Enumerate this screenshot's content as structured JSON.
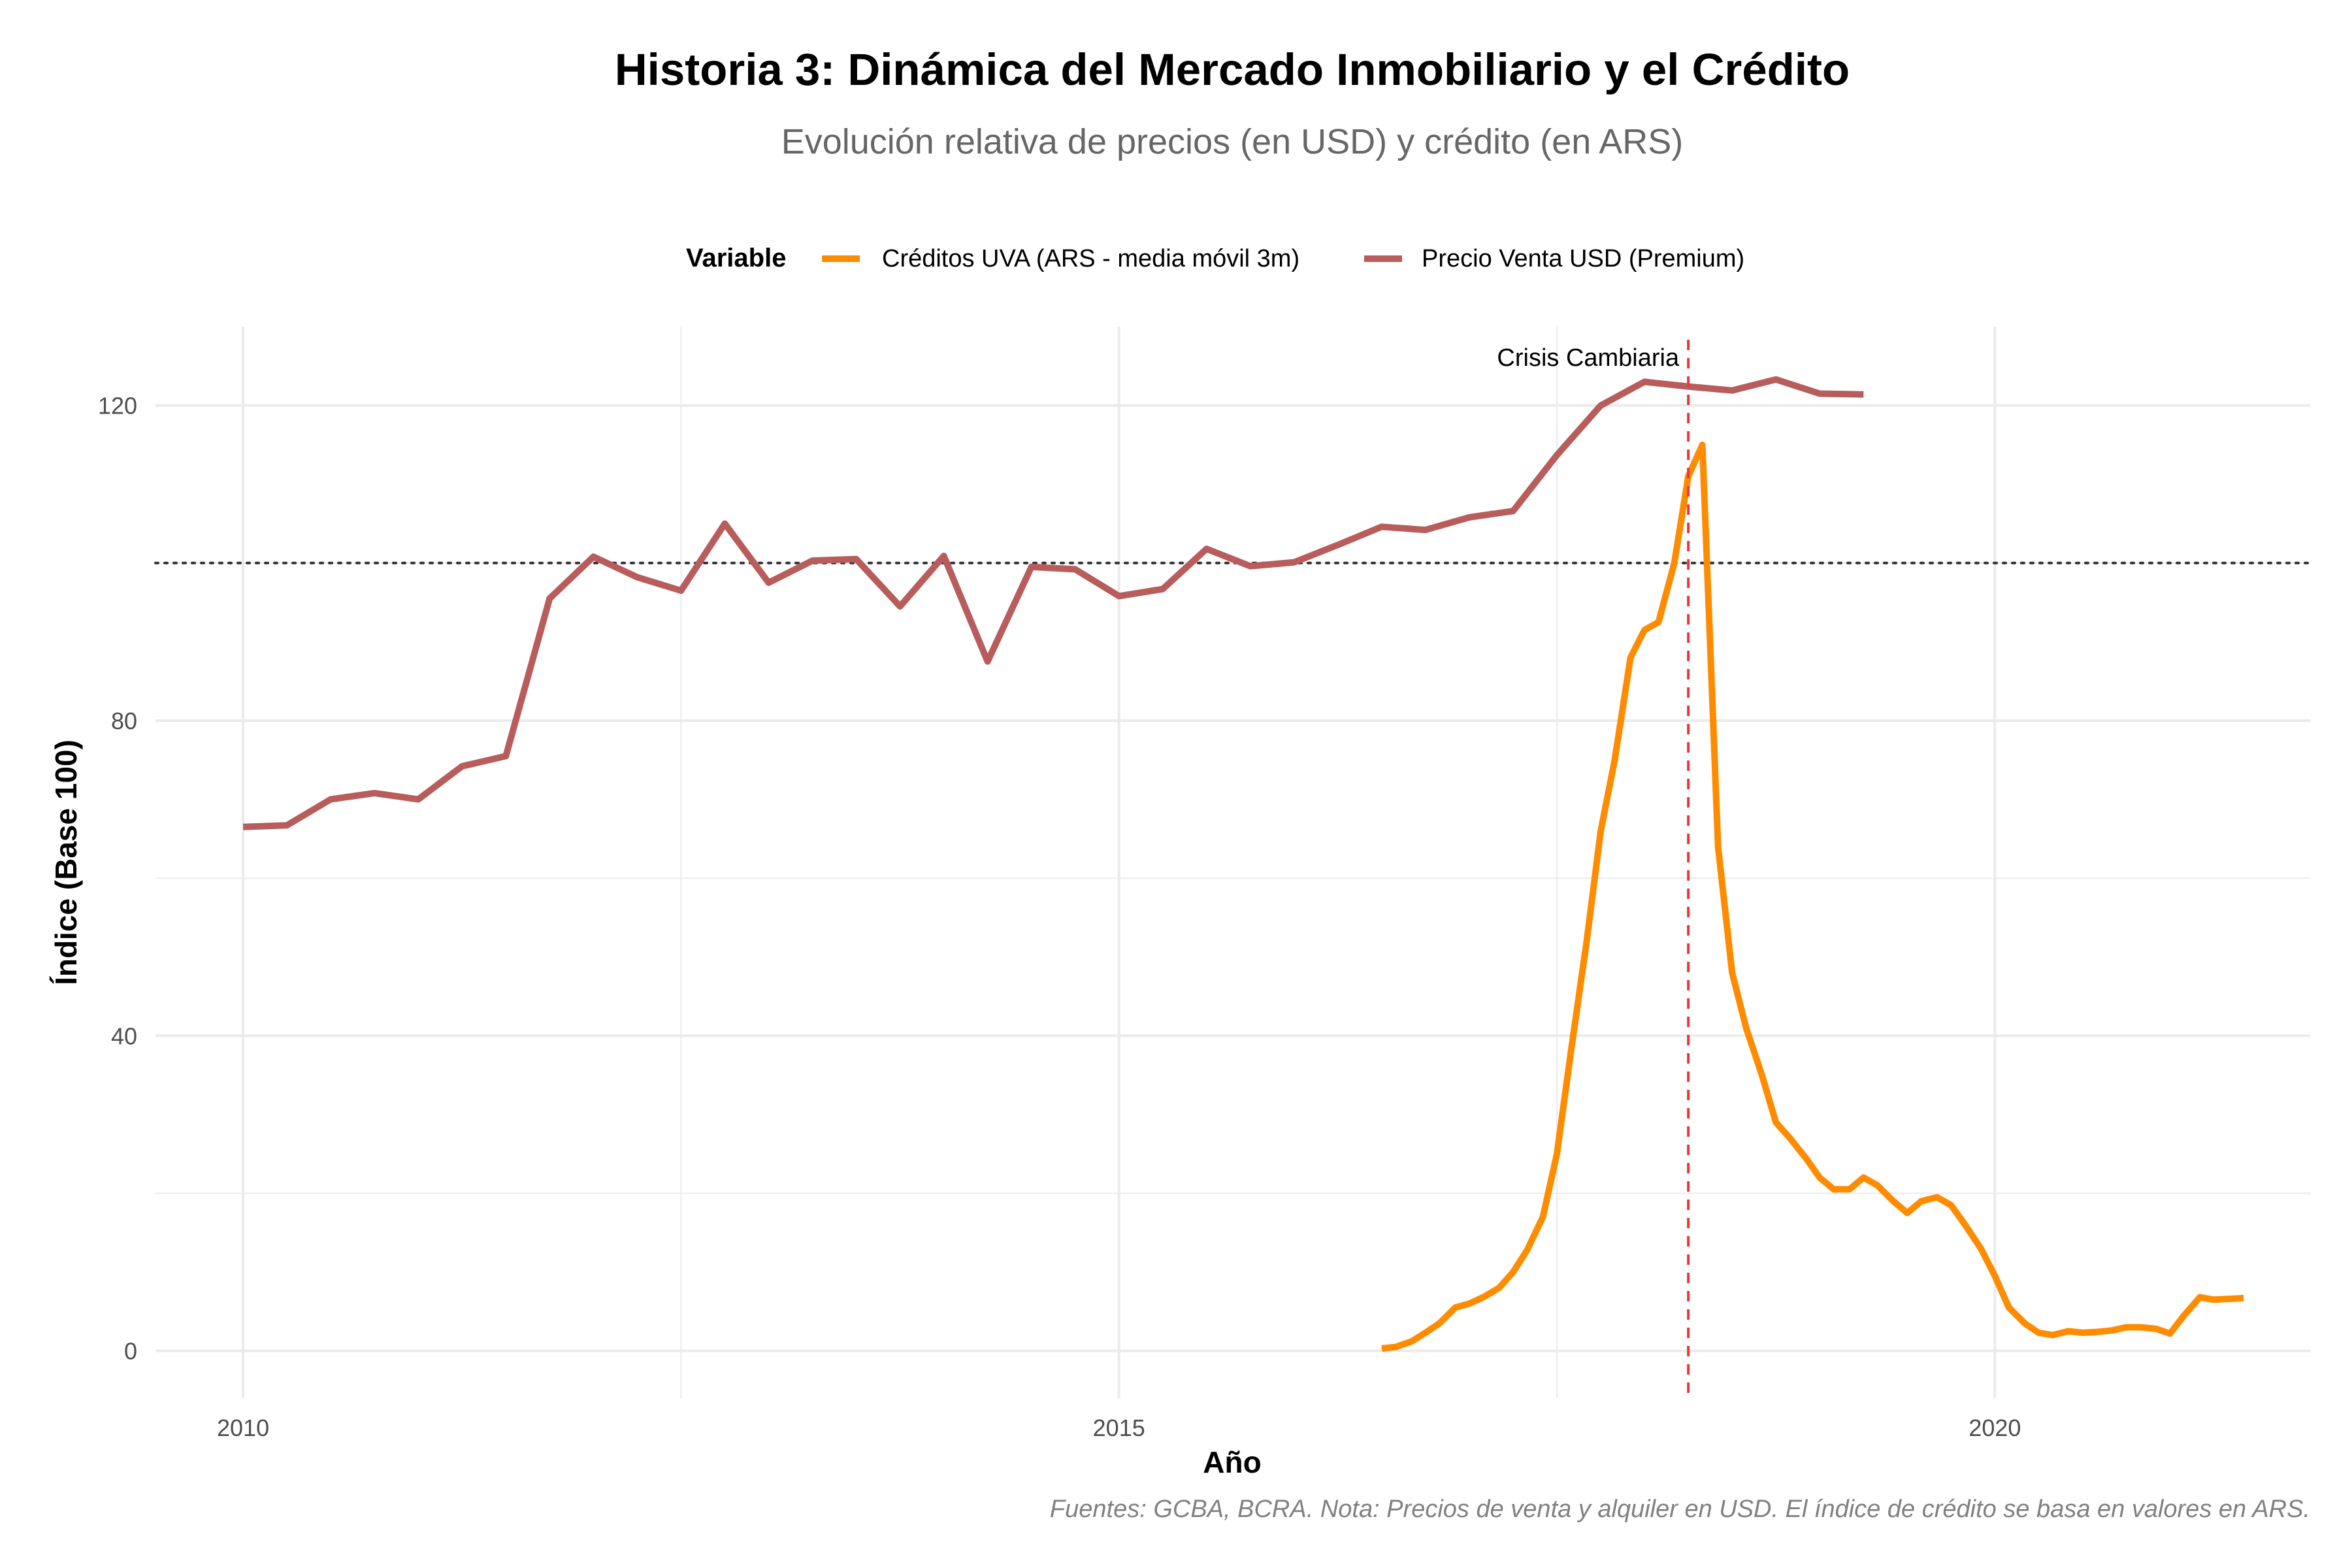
{
  "chart_data": {
    "type": "line",
    "title": "Historia 3: Dinámica del Mercado Inmobiliario y el Crédito",
    "subtitle": "Evolución relativa de precios (en USD) y crédito (en ARS)",
    "xlabel": "Año",
    "ylabel": "Índice (Base 100)",
    "caption": "Fuentes: GCBA, BCRA. Nota: Precios de venta y alquiler en USD. El índice de crédito se basa en valores en ARS.",
    "xlim": [
      2009.5,
      2021.8
    ],
    "ylim": [
      -6,
      130
    ],
    "x_ticks": [
      2010,
      2015,
      2020
    ],
    "y_ticks": [
      0,
      40,
      80,
      120
    ],
    "grid": true,
    "legend": {
      "title": "Variable",
      "position": "top"
    },
    "reference_line": {
      "y": 100,
      "style": "dotted",
      "color": "#333333"
    },
    "annotation": {
      "x": 2018.25,
      "label": "Crisis Cambiaria",
      "color": "#e8383d"
    },
    "series": [
      {
        "name": "Créditos UVA (ARS - media móvil 3m)",
        "color": "#ff8c00",
        "x": [
          2016.5,
          2016.58,
          2016.67,
          2016.75,
          2016.83,
          2016.92,
          2017.0,
          2017.08,
          2017.17,
          2017.25,
          2017.33,
          2017.42,
          2017.5,
          2017.58,
          2017.67,
          2017.75,
          2017.83,
          2017.92,
          2018.0,
          2018.08,
          2018.17,
          2018.25,
          2018.33,
          2018.42,
          2018.5,
          2018.58,
          2018.67,
          2018.75,
          2018.83,
          2018.92,
          2019.0,
          2019.08,
          2019.17,
          2019.25,
          2019.33,
          2019.42,
          2019.5,
          2019.58,
          2019.67,
          2019.75,
          2019.83,
          2019.92,
          2020.0,
          2020.08,
          2020.17,
          2020.25,
          2020.33,
          2020.42,
          2020.5,
          2020.58,
          2020.67,
          2020.75,
          2020.83,
          2020.92,
          2021.0,
          2021.08,
          2021.17,
          2021.25,
          2021.33,
          2021.42
        ],
        "values": [
          0.3,
          0.5,
          1.2,
          2.3,
          3.5,
          5.5,
          6.0,
          6.8,
          8.0,
          10.0,
          12.8,
          17.0,
          25.0,
          38.0,
          52.0,
          66.0,
          75.0,
          88.0,
          91.5,
          92.5,
          100.0,
          111.0,
          115.0,
          64.0,
          48.0,
          41.0,
          35.0,
          29.0,
          27.0,
          24.5,
          22.0,
          20.5,
          20.5,
          22.0,
          21.0,
          19.0,
          17.5,
          19.0,
          19.5,
          18.5,
          16.0,
          13.0,
          9.5,
          5.5,
          3.5,
          2.3,
          2.0,
          2.5,
          2.3,
          2.4,
          2.6,
          3.0,
          3.0,
          2.8,
          2.2,
          4.5,
          6.8,
          6.5,
          6.6,
          6.7
        ],
        "note_end": 2021.25
      },
      {
        "name": "Precio Venta USD (Premium)",
        "color": "#b85c5c",
        "x": [
          2010.0,
          2010.25,
          2010.5,
          2010.75,
          2011.0,
          2011.25,
          2011.5,
          2011.75,
          2012.0,
          2012.25,
          2012.5,
          2012.75,
          2013.0,
          2013.25,
          2013.5,
          2013.75,
          2014.0,
          2014.25,
          2014.5,
          2014.75,
          2015.0,
          2015.25,
          2015.5,
          2015.75,
          2016.0,
          2016.25,
          2016.5,
          2016.75,
          2017.0,
          2017.25,
          2017.5,
          2017.75,
          2018.0,
          2018.25,
          2018.5,
          2018.75,
          2019.0,
          2019.25
        ],
        "values": [
          66.5,
          66.7,
          70.0,
          70.8,
          70.0,
          74.2,
          75.5,
          95.5,
          100.8,
          98.2,
          96.5,
          105.0,
          97.5,
          100.3,
          100.5,
          94.5,
          100.9,
          87.5,
          99.5,
          99.2,
          95.8,
          96.7,
          101.8,
          99.6,
          100.1,
          102.3,
          104.6,
          104.2,
          105.8,
          106.6,
          113.7,
          120.0,
          123.0,
          122.4,
          121.9,
          123.3,
          121.5,
          121.4
        ]
      }
    ]
  }
}
